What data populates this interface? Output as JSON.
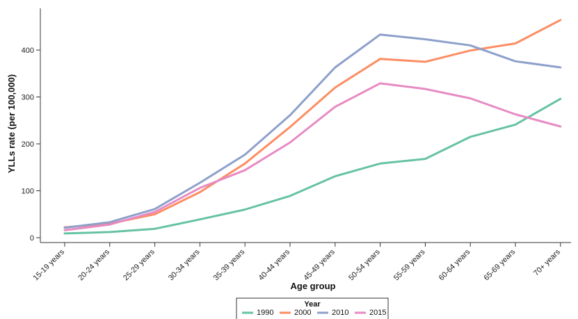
{
  "chart_data": {
    "type": "line",
    "title": "",
    "xlabel": "Age group",
    "ylabel": "YLLs rate (per 100,000)",
    "categories": [
      "15-19 years",
      "20-24 years",
      "25-29 years",
      "30-34 years",
      "35-39 years",
      "40-44 years",
      "45-49 years",
      "50-54 years",
      "55-59 years",
      "60-64 years",
      "65-69 years",
      "70+ years"
    ],
    "ylim": [
      -5,
      470
    ],
    "yticks": [
      0,
      100,
      200,
      300,
      400
    ],
    "grid": false,
    "legend": {
      "title": "Year",
      "placement": "bottom"
    },
    "series": [
      {
        "name": "1990",
        "color": "#66c2a5",
        "values": [
          9,
          12,
          19,
          39,
          60,
          89,
          131,
          158,
          168,
          215,
          241,
          296
        ]
      },
      {
        "name": "2000",
        "color": "#fc8d62",
        "values": [
          22,
          30,
          50,
          97,
          158,
          236,
          320,
          381,
          375,
          399,
          414,
          464
        ]
      },
      {
        "name": "2010",
        "color": "#8da0cb",
        "values": [
          21,
          33,
          61,
          117,
          177,
          261,
          363,
          433,
          423,
          410,
          376,
          363
        ]
      },
      {
        "name": "2015",
        "color": "#e78ac3",
        "values": [
          16,
          28,
          55,
          106,
          144,
          203,
          279,
          329,
          317,
          297,
          263,
          237
        ]
      }
    ]
  }
}
